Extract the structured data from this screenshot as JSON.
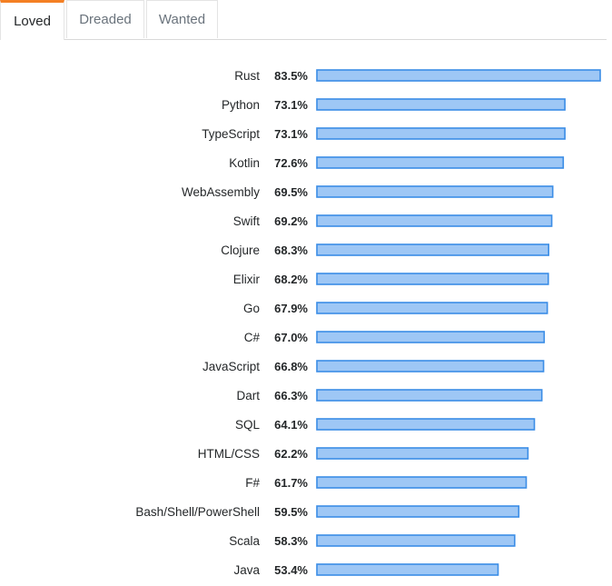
{
  "tabs": [
    {
      "label": "Loved",
      "active": true
    },
    {
      "label": "Dreaded",
      "active": false
    },
    {
      "label": "Wanted",
      "active": false
    }
  ],
  "colors": {
    "accent": "#f48024",
    "bar_fill": "#9ec7f5",
    "bar_border": "#3b8de6"
  },
  "chart_data": {
    "type": "bar",
    "orientation": "horizontal",
    "categories": [
      "Rust",
      "Python",
      "TypeScript",
      "Kotlin",
      "WebAssembly",
      "Swift",
      "Clojure",
      "Elixir",
      "Go",
      "C#",
      "JavaScript",
      "Dart",
      "SQL",
      "HTML/CSS",
      "F#",
      "Bash/Shell/PowerShell",
      "Scala",
      "Java"
    ],
    "values": [
      83.5,
      73.1,
      73.1,
      72.6,
      69.5,
      69.2,
      68.3,
      68.2,
      67.9,
      67.0,
      66.8,
      66.3,
      64.1,
      62.2,
      61.7,
      59.5,
      58.3,
      53.4
    ],
    "value_labels": [
      "83.5%",
      "73.1%",
      "73.1%",
      "72.6%",
      "69.5%",
      "69.2%",
      "68.3%",
      "68.2%",
      "67.9%",
      "67.0%",
      "66.8%",
      "66.3%",
      "64.1%",
      "62.2%",
      "61.7%",
      "59.5%",
      "58.3%",
      "53.4%"
    ],
    "title": "",
    "xlabel": "",
    "ylabel": "",
    "xlim": [
      0,
      83.5
    ],
    "grid": false,
    "legend": "none"
  }
}
